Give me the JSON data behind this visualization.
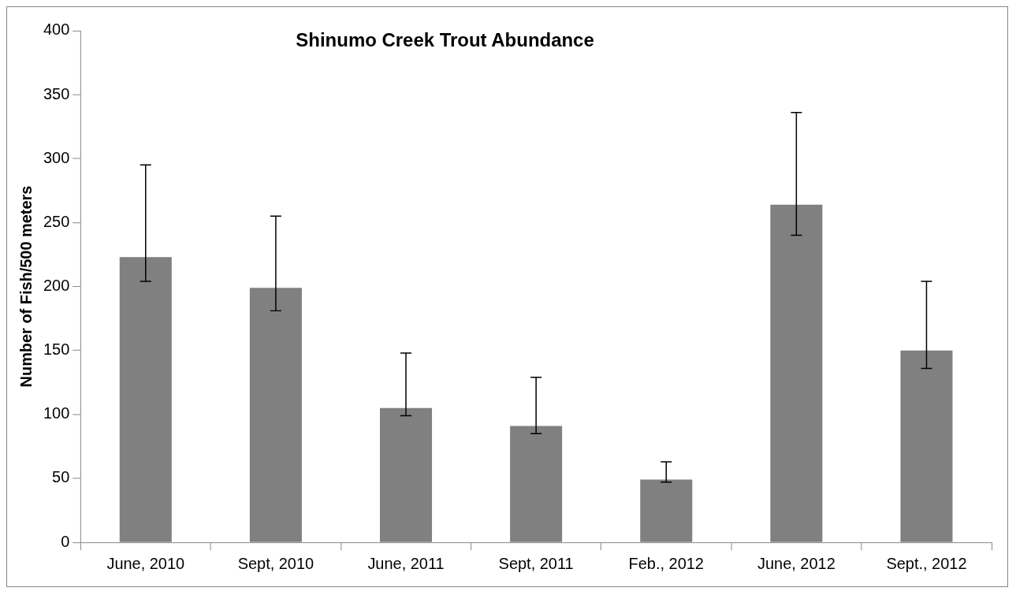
{
  "chart_data": {
    "type": "bar",
    "title": "Shinumo Creek Trout Abundance",
    "ylabel": "Number of Fish/500 meters",
    "categories": [
      "June, 2010",
      "Sept, 2010",
      "June, 2011",
      "Sept, 2011",
      "Feb., 2012",
      "June, 2012",
      "Sept., 2012"
    ],
    "values": [
      223,
      199,
      105,
      91,
      49,
      264,
      150
    ],
    "errors": [
      [
        204,
        295
      ],
      [
        181,
        255
      ],
      [
        99,
        148
      ],
      [
        85,
        129
      ],
      [
        47,
        63
      ],
      [
        240,
        336
      ],
      [
        136,
        204
      ]
    ],
    "color": "#808080",
    "ylim": [
      0,
      400
    ],
    "yticks": [
      0,
      50,
      100,
      150,
      200,
      250,
      300,
      350,
      400
    ],
    "grid": false
  }
}
